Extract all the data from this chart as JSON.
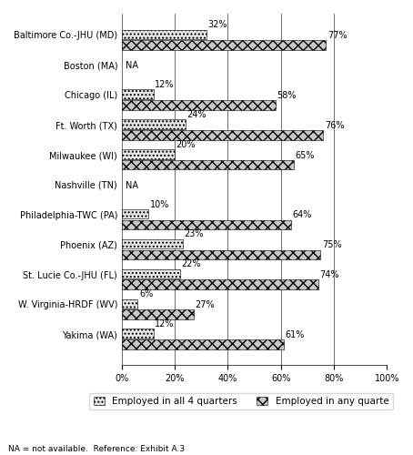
{
  "sites": [
    "Baltimore Co.-JHU (MD)",
    "Boston (MA)",
    "Chicago (IL)",
    "Ft. Worth (TX)",
    "Milwaukee (WI)",
    "Nashville (TN)",
    "Philadelphia-TWC (PA)",
    "Phoenix (AZ)",
    "St. Lucie Co.-JHU (FL)",
    "W. Virginia-HRDF (WV)",
    "Yakima (WA)"
  ],
  "any_quarter": [
    77,
    null,
    58,
    76,
    65,
    null,
    64,
    75,
    74,
    27,
    61
  ],
  "all_4_quarters": [
    32,
    null,
    12,
    24,
    20,
    null,
    10,
    23,
    22,
    6,
    12
  ],
  "any_quarter_labels": [
    "77%",
    "",
    "58%",
    "76%",
    "65%",
    "",
    "64%",
    "75%",
    "74%",
    "27%",
    "61%"
  ],
  "all_4_labels": [
    "32%",
    "",
    "12%",
    "24%",
    "20%",
    "",
    "10%",
    "23%",
    "22%",
    "6%",
    "12%"
  ],
  "bar_color_any": "#c0c0c0",
  "bar_color_all4": "#e0e0e0",
  "xlim": [
    0,
    100
  ],
  "xticks": [
    0,
    20,
    40,
    60,
    80,
    100
  ],
  "xticklabels": [
    "0%",
    "20%",
    "40%",
    "60%",
    "80%",
    "100%"
  ],
  "legend_label_any": "Employed in any quarte",
  "legend_label_all4": "Employed in all 4 quarters",
  "footnote": "NA = not available.  Reference: Exhibit A.3",
  "label_fontsize": 7,
  "tick_fontsize": 7,
  "legend_fontsize": 7.5,
  "ytick_fontsize": 7
}
